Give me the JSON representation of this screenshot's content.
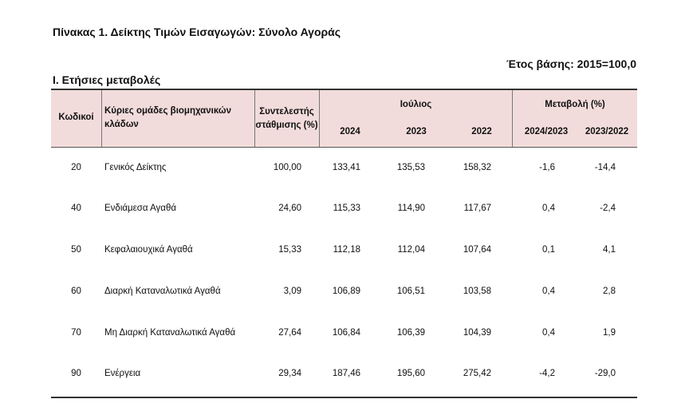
{
  "document": {
    "title": "Πίνακας 1. Δείκτης Τιμών Εισαγωγών: Σύνολο Αγοράς",
    "base_year": "Έτος βάσης: 2015=100,0",
    "section": "Ι. Ετήσιες μεταβολές"
  },
  "table": {
    "headers": {
      "code": "Κωδικοί",
      "group_line1": "Κύριες ομάδες βιομηχανικών",
      "group_line2": "κλάδων",
      "weight_line1": "Συντελεστής",
      "weight_line2": "στάθμισης (%)",
      "july": "Ιούλιος",
      "y2024": "2024",
      "y2023": "2023",
      "y2022": "2022",
      "change": "Μεταβολή (%)",
      "ch_24_23": "2024/2023",
      "ch_23_22": "2023/2022"
    },
    "rows": [
      {
        "code": "20",
        "name": "Γενικός Δείκτης",
        "weight": "100,00",
        "v2024": "133,41",
        "v2023": "135,53",
        "v2022": "158,32",
        "ch1": "-1,6",
        "ch2": "-14,4"
      },
      {
        "code": "40",
        "name": "Ενδιάμεσα Αγαθά",
        "weight": "24,60",
        "v2024": "115,33",
        "v2023": "114,90",
        "v2022": "117,67",
        "ch1": "0,4",
        "ch2": "-2,4"
      },
      {
        "code": "50",
        "name": "Κεφαλαιουχικά Αγαθά",
        "weight": "15,33",
        "v2024": "112,18",
        "v2023": "112,04",
        "v2022": "107,64",
        "ch1": "0,1",
        "ch2": "4,1"
      },
      {
        "code": "60",
        "name": "Διαρκή Καταναλωτικά Αγαθά",
        "weight": "3,09",
        "v2024": "106,89",
        "v2023": "106,51",
        "v2022": "103,58",
        "ch1": "0,4",
        "ch2": "2,8"
      },
      {
        "code": "70",
        "name": "Μη Διαρκή Καταναλωτικά Αγαθά",
        "weight": "27,64",
        "v2024": "106,84",
        "v2023": "106,39",
        "v2022": "104,39",
        "ch1": "0,4",
        "ch2": "1,9"
      },
      {
        "code": "90",
        "name": "Ενέργεια",
        "weight": "29,34",
        "v2024": "187,46",
        "v2023": "195,60",
        "v2022": "275,42",
        "ch1": "-4,2",
        "ch2": "-29,0"
      }
    ]
  }
}
